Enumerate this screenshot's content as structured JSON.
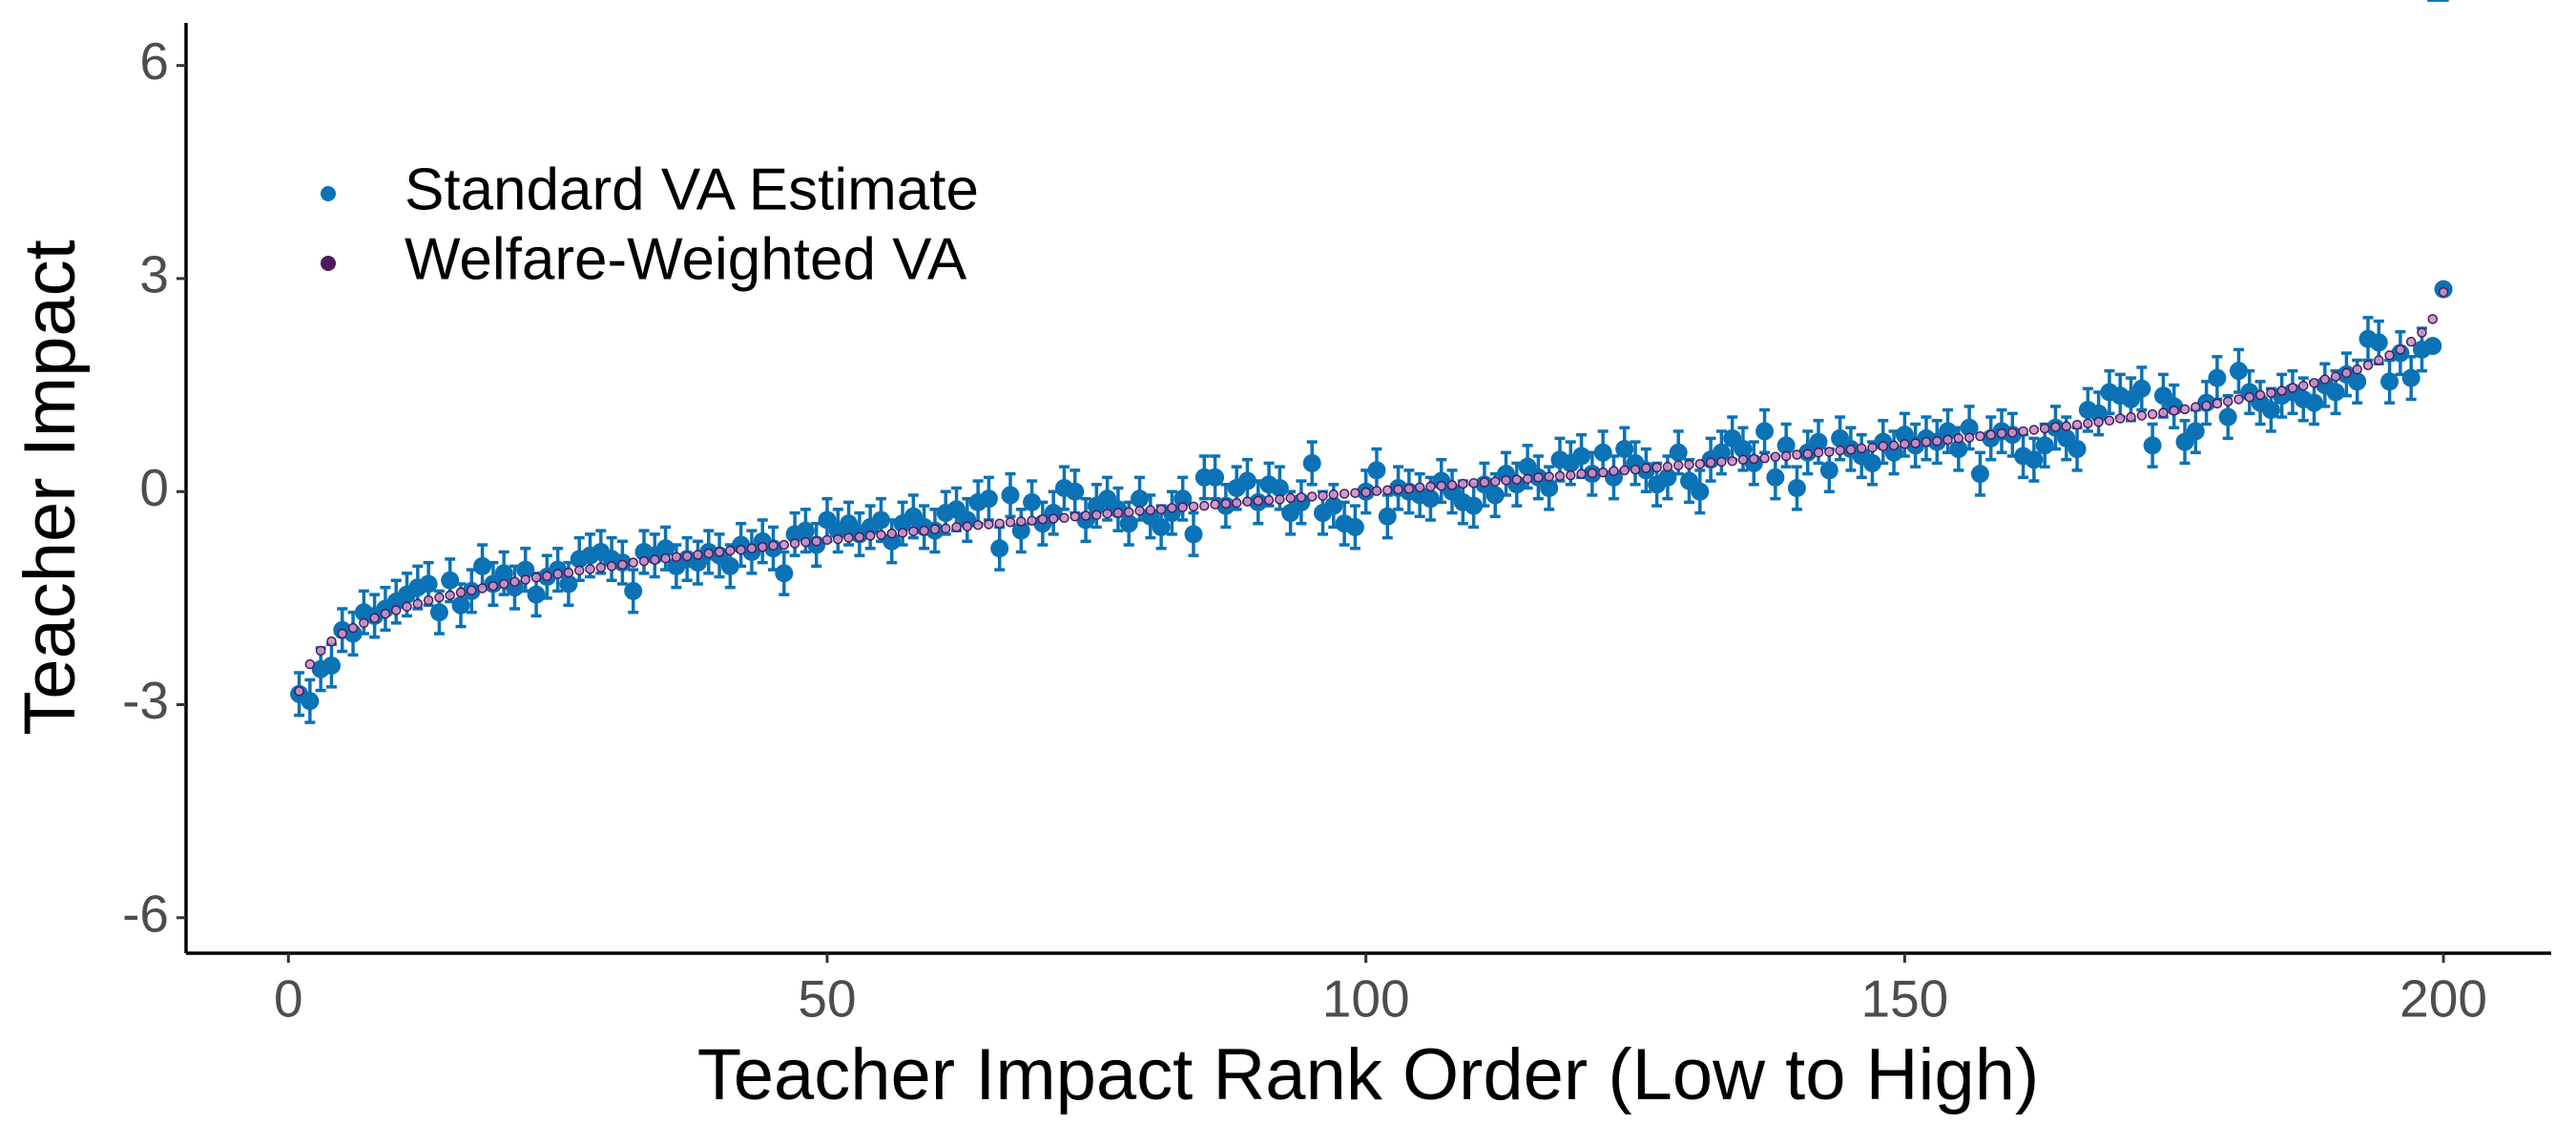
{
  "chart_data": {
    "type": "scatter",
    "x_label": "Teacher Impact Rank Order (Low to High)",
    "y_label": "Teacher Impact",
    "xlim": [
      -9.5,
      210
    ],
    "ylim": [
      -6.5,
      6.6
    ],
    "xticks": [
      0,
      50,
      100,
      150,
      200
    ],
    "yticks": [
      -6,
      -3,
      0,
      3,
      6
    ],
    "grid": false,
    "legend_position": "top-left",
    "x": [
      1,
      2,
      3,
      4,
      5,
      6,
      7,
      8,
      9,
      10,
      11,
      12,
      13,
      14,
      15,
      16,
      17,
      18,
      19,
      20,
      21,
      22,
      23,
      24,
      25,
      26,
      27,
      28,
      29,
      30,
      31,
      32,
      33,
      34,
      35,
      36,
      37,
      38,
      39,
      40,
      41,
      42,
      43,
      44,
      45,
      46,
      47,
      48,
      49,
      50,
      51,
      52,
      53,
      54,
      55,
      56,
      57,
      58,
      59,
      60,
      61,
      62,
      63,
      64,
      65,
      66,
      67,
      68,
      69,
      70,
      71,
      72,
      73,
      74,
      75,
      76,
      77,
      78,
      79,
      80,
      81,
      82,
      83,
      84,
      85,
      86,
      87,
      88,
      89,
      90,
      91,
      92,
      93,
      94,
      95,
      96,
      97,
      98,
      99,
      100,
      101,
      102,
      103,
      104,
      105,
      106,
      107,
      108,
      109,
      110,
      111,
      112,
      113,
      114,
      115,
      116,
      117,
      118,
      119,
      120,
      121,
      122,
      123,
      124,
      125,
      126,
      127,
      128,
      129,
      130,
      131,
      132,
      133,
      134,
      135,
      136,
      137,
      138,
      139,
      140,
      141,
      142,
      143,
      144,
      145,
      146,
      147,
      148,
      149,
      150,
      151,
      152,
      153,
      154,
      155,
      156,
      157,
      158,
      159,
      160,
      161,
      162,
      163,
      164,
      165,
      166,
      167,
      168,
      169,
      170,
      171,
      172,
      173,
      174,
      175,
      176,
      177,
      178,
      179,
      180,
      181,
      182,
      183,
      184,
      185,
      186,
      187,
      188,
      189,
      190,
      191,
      192,
      193,
      194,
      195,
      196,
      197,
      198,
      199,
      200
    ],
    "series": [
      {
        "name": "Standard VA Estimate",
        "color": "#0b72b5",
        "values": [
          -2.85,
          -2.95,
          -2.5,
          -2.45,
          -1.95,
          -2.0,
          -1.7,
          -1.75,
          -1.65,
          -1.55,
          -1.45,
          -1.35,
          -1.3,
          -1.7,
          -1.25,
          -1.6,
          -1.4,
          -1.05,
          -1.3,
          -1.15,
          -1.35,
          -1.1,
          -1.45,
          -1.2,
          -1.1,
          -1.3,
          -0.95,
          -0.9,
          -0.85,
          -0.95,
          -1.0,
          -1.4,
          -0.85,
          -0.9,
          -0.8,
          -1.05,
          -0.95,
          -1.0,
          -0.85,
          -0.9,
          -1.05,
          -0.75,
          -0.85,
          -0.7,
          -0.8,
          -1.15,
          -0.6,
          -0.55,
          -0.75,
          -0.4,
          -0.55,
          -0.45,
          -0.6,
          -0.5,
          -0.4,
          -0.7,
          -0.45,
          -0.35,
          -0.5,
          -0.55,
          -0.3,
          -0.25,
          -0.4,
          -0.15,
          -0.1,
          -0.8,
          -0.05,
          -0.55,
          -0.15,
          -0.45,
          -0.3,
          0.05,
          0.0,
          -0.4,
          -0.2,
          -0.1,
          -0.25,
          -0.45,
          -0.1,
          -0.35,
          -0.5,
          -0.3,
          -0.1,
          -0.6,
          0.2,
          0.2,
          -0.2,
          0.05,
          0.15,
          -0.15,
          0.1,
          0.05,
          -0.3,
          -0.15,
          0.4,
          -0.3,
          -0.2,
          -0.45,
          -0.5,
          0.0,
          0.3,
          -0.35,
          0.05,
          0.0,
          -0.05,
          -0.1,
          0.15,
          0.0,
          -0.15,
          -0.2,
          0.1,
          -0.05,
          0.25,
          0.1,
          0.35,
          0.2,
          0.05,
          0.45,
          0.4,
          0.5,
          0.25,
          0.55,
          0.2,
          0.6,
          0.4,
          0.3,
          0.1,
          0.2,
          0.55,
          0.15,
          0.0,
          0.45,
          0.55,
          0.75,
          0.6,
          0.4,
          0.85,
          0.2,
          0.65,
          0.05,
          0.55,
          0.7,
          0.3,
          0.75,
          0.6,
          0.5,
          0.4,
          0.7,
          0.55,
          0.8,
          0.65,
          0.75,
          0.7,
          0.85,
          0.6,
          0.9,
          0.25,
          0.75,
          0.85,
          0.8,
          0.5,
          0.45,
          0.65,
          0.9,
          0.75,
          0.6,
          1.15,
          1.1,
          1.4,
          1.35,
          1.3,
          1.45,
          0.65,
          1.35,
          1.2,
          0.7,
          0.85,
          1.25,
          1.6,
          1.05,
          1.7,
          1.4,
          1.25,
          1.15,
          1.35,
          1.4,
          1.3,
          1.25,
          1.5,
          1.4,
          1.65,
          1.55,
          2.15,
          2.1,
          1.55,
          1.95,
          1.6,
          2.0,
          2.05,
          2.85
        ],
        "errors": [
          0.3,
          0.3,
          0.3,
          0.3,
          0.3,
          0.3,
          0.3,
          0.3,
          0.3,
          0.3,
          0.3,
          0.3,
          0.3,
          0.3,
          0.3,
          0.3,
          0.3,
          0.3,
          0.3,
          0.3,
          0.3,
          0.3,
          0.3,
          0.3,
          0.3,
          0.3,
          0.3,
          0.3,
          0.3,
          0.3,
          0.3,
          0.3,
          0.3,
          0.3,
          0.3,
          0.3,
          0.3,
          0.3,
          0.3,
          0.3,
          0.3,
          0.3,
          0.3,
          0.3,
          0.3,
          0.3,
          0.3,
          0.3,
          0.3,
          0.3,
          0.3,
          0.3,
          0.3,
          0.3,
          0.3,
          0.3,
          0.3,
          0.3,
          0.3,
          0.3,
          0.3,
          0.3,
          0.3,
          0.3,
          0.3,
          0.3,
          0.3,
          0.3,
          0.3,
          0.3,
          0.3,
          0.3,
          0.3,
          0.3,
          0.3,
          0.3,
          0.3,
          0.3,
          0.3,
          0.3,
          0.3,
          0.3,
          0.3,
          0.3,
          0.3,
          0.3,
          0.3,
          0.3,
          0.3,
          0.3,
          0.3,
          0.3,
          0.3,
          0.3,
          0.3,
          0.3,
          0.3,
          0.3,
          0.3,
          0.3,
          0.3,
          0.3,
          0.3,
          0.3,
          0.3,
          0.3,
          0.3,
          0.3,
          0.3,
          0.3,
          0.3,
          0.3,
          0.3,
          0.3,
          0.3,
          0.3,
          0.3,
          0.3,
          0.3,
          0.3,
          0.3,
          0.3,
          0.3,
          0.3,
          0.3,
          0.3,
          0.3,
          0.3,
          0.3,
          0.3,
          0.3,
          0.3,
          0.3,
          0.3,
          0.3,
          0.3,
          0.3,
          0.3,
          0.3,
          0.3,
          0.3,
          0.3,
          0.3,
          0.3,
          0.3,
          0.3,
          0.3,
          0.3,
          0.3,
          0.3,
          0.3,
          0.3,
          0.3,
          0.3,
          0.3,
          0.3,
          0.3,
          0.3,
          0.3,
          0.3,
          0.3,
          0.3,
          0.3,
          0.3,
          0.3,
          0.3,
          0.3,
          0.3,
          0.3,
          0.3,
          0.3,
          0.3,
          0.3,
          0.3,
          0.3,
          0.3,
          0.3,
          0.3,
          0.3,
          0.3,
          0.3,
          0.3,
          0.3,
          0.3,
          0.3,
          0.3,
          0.3,
          0.3,
          0.3,
          0.3,
          0.3,
          0.3,
          0.3,
          0.3,
          0.3,
          0.3,
          0.3,
          0.3
        ]
      },
      {
        "name": "Welfare-Weighted VA",
        "color": "#4d1a5b",
        "values": [
          -2.81,
          -2.43,
          -2.24,
          -2.11,
          -2.0,
          -1.92,
          -1.85,
          -1.78,
          -1.72,
          -1.67,
          -1.62,
          -1.58,
          -1.53,
          -1.49,
          -1.46,
          -1.42,
          -1.39,
          -1.36,
          -1.33,
          -1.3,
          -1.27,
          -1.24,
          -1.21,
          -1.19,
          -1.16,
          -1.14,
          -1.11,
          -1.09,
          -1.07,
          -1.05,
          -1.03,
          -1.0,
          -0.98,
          -0.96,
          -0.94,
          -0.92,
          -0.91,
          -0.89,
          -0.87,
          -0.85,
          -0.83,
          -0.82,
          -0.8,
          -0.78,
          -0.76,
          -0.75,
          -0.73,
          -0.71,
          -0.7,
          -0.68,
          -0.67,
          -0.65,
          -0.64,
          -0.62,
          -0.61,
          -0.59,
          -0.58,
          -0.56,
          -0.55,
          -0.53,
          -0.52,
          -0.5,
          -0.49,
          -0.47,
          -0.46,
          -0.45,
          -0.43,
          -0.42,
          -0.41,
          -0.39,
          -0.38,
          -0.37,
          -0.35,
          -0.34,
          -0.33,
          -0.31,
          -0.3,
          -0.29,
          -0.27,
          -0.26,
          -0.25,
          -0.23,
          -0.22,
          -0.21,
          -0.2,
          -0.18,
          -0.17,
          -0.16,
          -0.14,
          -0.13,
          -0.12,
          -0.11,
          -0.09,
          -0.08,
          -0.07,
          -0.06,
          -0.04,
          -0.03,
          -0.02,
          -0.01,
          0.01,
          0.02,
          0.03,
          0.04,
          0.06,
          0.07,
          0.08,
          0.09,
          0.11,
          0.12,
          0.13,
          0.14,
          0.16,
          0.17,
          0.18,
          0.2,
          0.21,
          0.22,
          0.23,
          0.25,
          0.26,
          0.27,
          0.29,
          0.3,
          0.31,
          0.33,
          0.34,
          0.35,
          0.37,
          0.38,
          0.39,
          0.41,
          0.42,
          0.43,
          0.45,
          0.46,
          0.47,
          0.49,
          0.5,
          0.52,
          0.53,
          0.55,
          0.56,
          0.58,
          0.59,
          0.61,
          0.62,
          0.64,
          0.65,
          0.67,
          0.68,
          0.7,
          0.71,
          0.73,
          0.75,
          0.76,
          0.78,
          0.8,
          0.82,
          0.83,
          0.85,
          0.87,
          0.89,
          0.91,
          0.92,
          0.94,
          0.96,
          0.98,
          1.0,
          1.03,
          1.05,
          1.07,
          1.09,
          1.11,
          1.14,
          1.16,
          1.19,
          1.21,
          1.24,
          1.27,
          1.3,
          1.33,
          1.36,
          1.39,
          1.42,
          1.46,
          1.49,
          1.53,
          1.58,
          1.62,
          1.67,
          1.72,
          1.78,
          1.85,
          1.92,
          2.0,
          2.11,
          2.24,
          2.43,
          2.81
        ]
      }
    ]
  }
}
